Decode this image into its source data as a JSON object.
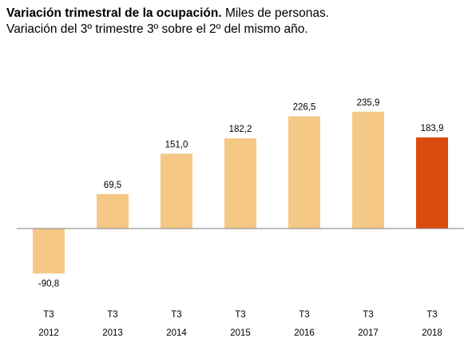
{
  "header": {
    "title_bold": "Variación trimestral de la ocupación.",
    "title_rest": "Miles de personas.",
    "subtitle": "Variación del 3º trimestre 3º sobre el 2º del mismo año."
  },
  "chart_data": {
    "type": "bar",
    "title": "Variación trimestral de la ocupación. Miles de personas.",
    "subtitle": "Variación del 3º trimestre 3º sobre el 2º del mismo año.",
    "categories": [
      [
        "T3",
        "2012"
      ],
      [
        "T3",
        "2013"
      ],
      [
        "T3",
        "2014"
      ],
      [
        "T3",
        "2015"
      ],
      [
        "T3",
        "2016"
      ],
      [
        "T3",
        "2017"
      ],
      [
        "T3",
        "2018"
      ]
    ],
    "values": [
      -90.8,
      69.5,
      151.0,
      182.2,
      226.5,
      235.9,
      183.9
    ],
    "value_labels": [
      "-90,8",
      "69,5",
      "151,0",
      "182,2",
      "226,5",
      "235,9",
      "183,9"
    ],
    "colors": [
      "#f6c885",
      "#f6c885",
      "#f6c885",
      "#f6c885",
      "#f6c885",
      "#f6c885",
      "#d94c0e"
    ],
    "axis_color": "#7f7f7f",
    "ylim": [
      -90.8,
      235.9
    ],
    "grid": false,
    "legend": "none"
  }
}
